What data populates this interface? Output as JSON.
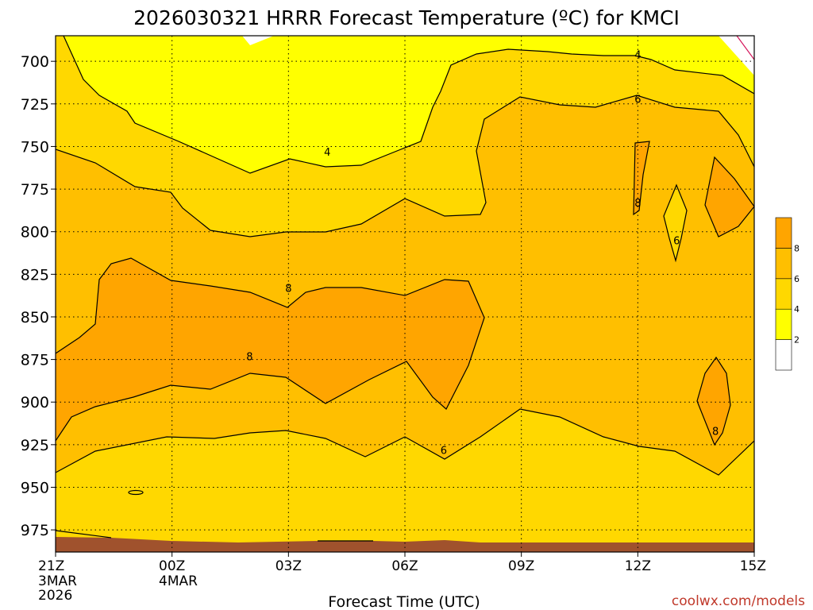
{
  "chart_data": {
    "type": "contour",
    "title": "2026030321 HRRR Forecast Temperature (ºC) for KMCI",
    "xlabel": "Forecast Time (UTC)",
    "ylabel": "",
    "x_ticks": [
      {
        "label": "21Z",
        "sub": [
          "3MAR",
          "2026"
        ]
      },
      {
        "label": "00Z",
        "sub": [
          "4MAR"
        ]
      },
      {
        "label": "03Z",
        "sub": []
      },
      {
        "label": "06Z",
        "sub": []
      },
      {
        "label": "09Z",
        "sub": []
      },
      {
        "label": "12Z",
        "sub": []
      },
      {
        "label": "15Z",
        "sub": []
      }
    ],
    "x_hours": [
      0,
      3,
      6,
      9,
      12,
      15,
      18
    ],
    "xlim": [
      0,
      18
    ],
    "y_ticks": [
      700,
      725,
      750,
      775,
      800,
      825,
      850,
      875,
      900,
      925,
      950,
      975
    ],
    "ylim": [
      685,
      988
    ],
    "y_reversed": true,
    "contour_levels": [
      2,
      4,
      6,
      8
    ],
    "contour_labels": [
      {
        "text": "4",
        "t": 7.0,
        "p": 753
      },
      {
        "text": "4",
        "t": 15.0,
        "p": 696
      },
      {
        "text": "6",
        "t": 15.0,
        "p": 722
      },
      {
        "text": "8",
        "t": 15.0,
        "p": 783
      },
      {
        "text": "6",
        "t": 16.0,
        "p": 805
      },
      {
        "text": "8",
        "t": 6.0,
        "p": 833
      },
      {
        "text": "8",
        "t": 5.0,
        "p": 873
      },
      {
        "text": "6",
        "t": 10.0,
        "p": 928
      },
      {
        "text": "8",
        "t": 17.0,
        "p": 917
      }
    ],
    "legend": {
      "position": "right",
      "labels": [
        "2",
        "4",
        "6",
        "8"
      ],
      "colors": [
        "#ffffff",
        "#ffff00",
        "#ffd800",
        "#ffbf00",
        "#ffa500"
      ]
    },
    "colors": {
      "below_2": "#ffffff",
      "2_to_4": "#ffff00",
      "4_to_6": "#ffd800",
      "6_to_8": "#ffbf00",
      "above_8": "#ffa500",
      "ground": "#a0522d",
      "grid": "#000000"
    },
    "grid": true
  },
  "credit": "coolwx.com/models"
}
